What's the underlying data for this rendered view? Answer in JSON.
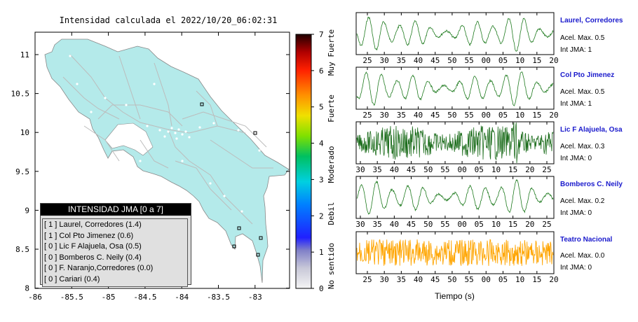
{
  "map": {
    "title": "Intensidad calculada el 2022/10/20_06:02:31",
    "x_ticks": [
      "-86",
      "-85.5",
      "-85",
      "-84.5",
      "-84",
      "-83.5",
      "-83"
    ],
    "y_ticks": [
      "11",
      "10.5",
      "10",
      "9.5",
      "9",
      "8.5",
      "8"
    ],
    "land_color": "#b4eaea",
    "sea_color": "#ffffff"
  },
  "colorbar": {
    "ticks": [
      "7",
      "6",
      "5",
      "4",
      "3",
      "2",
      "1",
      "0"
    ],
    "labels": [
      "Muy Fuerte",
      "Fuerte",
      "Moderado",
      "Debil",
      "No sentido"
    ]
  },
  "legend": {
    "title": "INTENSIDAD JMA [0 a 7]",
    "items": [
      "[ 1 ]  Laurel, Corredores (1.4)",
      "[ 1 ]  Col Pto Jimenez (0.6)",
      "[ 0 ]  Lic F Alajuela, Osa (0.5)",
      "[ 0 ]  Bomberos C. Neily (0.4)",
      "[ 0 ]  F. Naranjo,Corredores (0.0)",
      "[ 0 ]  Cariari (0.4)"
    ]
  },
  "stations": [
    {
      "name": "Laurel, Corredores",
      "acel": "Acel. Max. 0.5",
      "jma": "Int JMA: 1",
      "color": "#1e7a1e",
      "ticks": [
        "25",
        "30",
        "35",
        "40",
        "45",
        "50",
        "55",
        "00",
        "05",
        "10",
        "15",
        "20"
      ]
    },
    {
      "name": "Col Pto Jimenez",
      "acel": "Acel. Max. 0.5",
      "jma": "Int JMA: 1",
      "color": "#1e7a1e",
      "ticks": [
        "25",
        "30",
        "35",
        "40",
        "45",
        "50",
        "55",
        "00",
        "05",
        "10",
        "15",
        "20"
      ]
    },
    {
      "name": "Lic F Alajuela, Osa",
      "acel": "Acel. Max. 0.3",
      "jma": "Int JMA: 0",
      "color": "#1e6e1e",
      "ticks": [
        "30",
        "35",
        "40",
        "45",
        "50",
        "55",
        "00",
        "05",
        "10",
        "15",
        "20",
        "25"
      ]
    },
    {
      "name": "Bomberos C. Neily",
      "acel": "Acel. Max. 0.2",
      "jma": "Int JMA: 0",
      "color": "#1e7a1e",
      "ticks": [
        "30",
        "35",
        "40",
        "45",
        "50",
        "55",
        "00",
        "05",
        "10",
        "15",
        "20",
        "25"
      ]
    },
    {
      "name": "Teatro Nacional",
      "acel": "Acel. Max. 0.0",
      "jma": "Int JMA: 0",
      "color": "#ffa500",
      "ticks": [
        "25",
        "30",
        "35",
        "40",
        "45",
        "50",
        "55",
        "00",
        "05",
        "10",
        "15",
        "20"
      ]
    }
  ],
  "waveform_xlabel": "Tiempo (s)"
}
